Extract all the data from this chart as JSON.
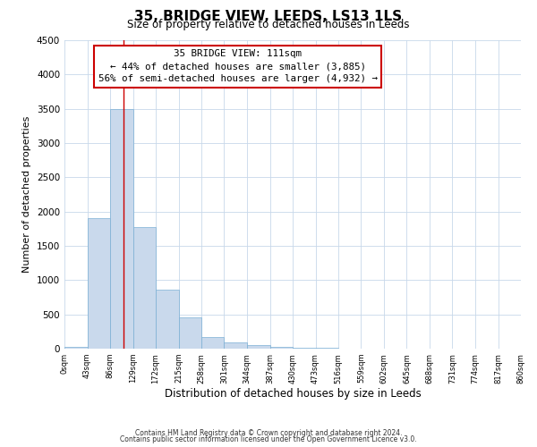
{
  "title": "35, BRIDGE VIEW, LEEDS, LS13 1LS",
  "subtitle": "Size of property relative to detached houses in Leeds",
  "xlabel": "Distribution of detached houses by size in Leeds",
  "ylabel": "Number of detached properties",
  "bar_color": "#c9d9ec",
  "bar_edgecolor": "#7bafd4",
  "vline_x": 111,
  "vline_color": "#cc0000",
  "bin_edges": [
    0,
    43,
    86,
    129,
    172,
    215,
    258,
    301,
    344,
    387,
    430,
    473,
    516,
    559,
    602,
    645,
    688,
    731,
    774,
    817,
    860
  ],
  "bin_counts": [
    30,
    1900,
    3500,
    1780,
    860,
    460,
    175,
    90,
    55,
    20,
    10,
    8,
    5,
    3,
    2,
    2,
    1,
    1,
    1,
    1
  ],
  "ylim": [
    0,
    4500
  ],
  "yticks": [
    0,
    500,
    1000,
    1500,
    2000,
    2500,
    3000,
    3500,
    4000,
    4500
  ],
  "xtick_labels": [
    "0sqm",
    "43sqm",
    "86sqm",
    "129sqm",
    "172sqm",
    "215sqm",
    "258sqm",
    "301sqm",
    "344sqm",
    "387sqm",
    "430sqm",
    "473sqm",
    "516sqm",
    "559sqm",
    "602sqm",
    "645sqm",
    "688sqm",
    "731sqm",
    "774sqm",
    "817sqm",
    "860sqm"
  ],
  "annotation_title": "35 BRIDGE VIEW: 111sqm",
  "annotation_line1": "← 44% of detached houses are smaller (3,885)",
  "annotation_line2": "56% of semi-detached houses are larger (4,932) →",
  "annotation_box_color": "#ffffff",
  "annotation_box_edgecolor": "#cc0000",
  "footer_line1": "Contains HM Land Registry data © Crown copyright and database right 2024.",
  "footer_line2": "Contains public sector information licensed under the Open Government Licence v3.0.",
  "background_color": "#ffffff",
  "grid_color": "#c8d8ea"
}
